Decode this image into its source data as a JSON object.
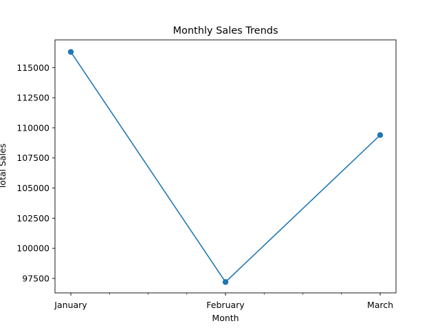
{
  "chart_data": {
    "type": "line",
    "title": "Monthly Sales Trends",
    "xlabel": "Month",
    "ylabel": "Total Sales",
    "categories": [
      "January",
      "February",
      "March"
    ],
    "series": [
      {
        "values": [
          116300,
          97200,
          109400
        ]
      }
    ],
    "ylim": [
      96300,
      117300
    ],
    "yticks": [
      97500,
      100000,
      102500,
      105000,
      107500,
      110000,
      112500,
      115000
    ],
    "grid": false,
    "color": "#1f77b4"
  }
}
